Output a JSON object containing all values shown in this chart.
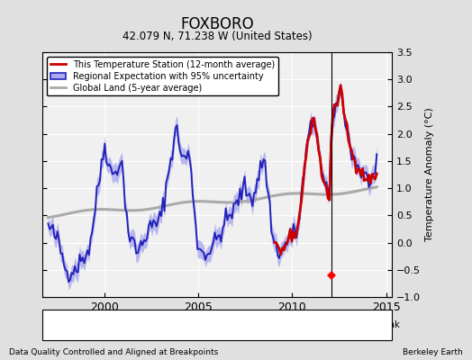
{
  "title": "FOXBORO",
  "subtitle": "42.079 N, 71.238 W (United States)",
  "ylabel": "Temperature Anomaly (°C)",
  "xlabel_bottom_left": "Data Quality Controlled and Aligned at Breakpoints",
  "xlabel_bottom_right": "Berkeley Earth",
  "ylim": [
    -1.0,
    3.5
  ],
  "xlim": [
    1996.7,
    2015.3
  ],
  "xticks": [
    2000,
    2005,
    2010,
    2015
  ],
  "yticks": [
    -1.0,
    -0.5,
    0.0,
    0.5,
    1.0,
    1.5,
    2.0,
    2.5,
    3.0,
    3.5
  ],
  "regional_color": "#2222bb",
  "regional_band_color": "#aaaaee",
  "station_color": "#cc0000",
  "global_color": "#aaaaaa",
  "vline_x": 2012.1,
  "marker_x": 2012.1,
  "marker_y": -0.6,
  "background_color": "#e0e0e0"
}
